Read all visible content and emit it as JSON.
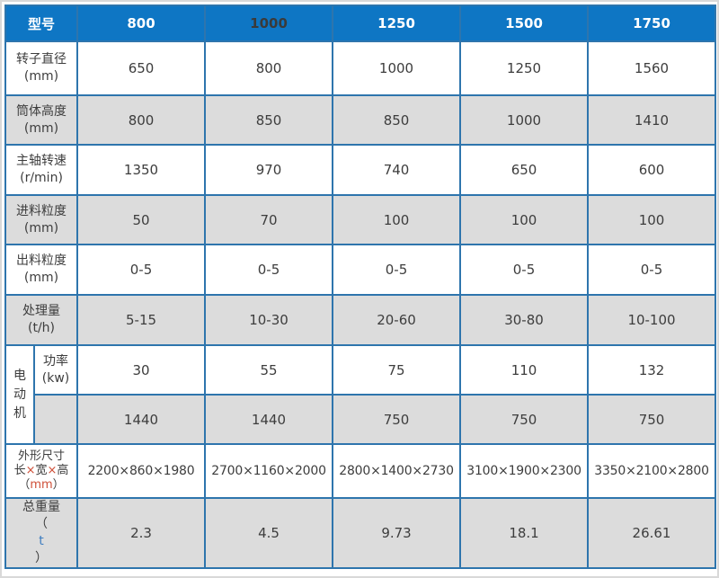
{
  "colors": {
    "header_bg": "#0e76c4",
    "grid_border": "#2e75ad",
    "alt_row_bg": "#dcdcdc",
    "body_text": "#3d3d3d",
    "header_text": "#ffffff",
    "header_dark_number": "#3a3a3a",
    "unit_red": "#cf4f38",
    "unit_blue": "#3f7ec0",
    "outer_frame": "#d9d9d9"
  },
  "table": {
    "header": {
      "label": "型号",
      "models": [
        "800",
        "1000",
        "1250",
        "1500",
        "1750"
      ]
    },
    "motor_label": "电动机",
    "rows": [
      {
        "label1": "转子直径",
        "label2": "(mm)",
        "values": [
          "650",
          "800",
          "1000",
          "1250",
          "1560"
        ]
      },
      {
        "label1": "筒体高度",
        "label2": "(mm)",
        "values": [
          "800",
          "850",
          "850",
          "1000",
          "1410"
        ]
      },
      {
        "label1": "主轴转速",
        "label2": "(r/min)",
        "values": [
          "1350",
          "970",
          "740",
          "650",
          "600"
        ]
      },
      {
        "label1": "进料粒度",
        "label2": "(mm)",
        "values": [
          "50",
          "70",
          "100",
          "100",
          "100"
        ]
      },
      {
        "label1": "出料粒度",
        "label2": "(mm)",
        "values": [
          "0-5",
          "0-5",
          "0-5",
          "0-5",
          "0-5"
        ]
      },
      {
        "label1": "处理量",
        "label2": "(t/h)",
        "values": [
          "5-15",
          "10-30",
          "20-60",
          "30-80",
          "10-100"
        ]
      },
      {
        "label1": "功率",
        "label2": "(kw)",
        "values": [
          "30",
          "55",
          "75",
          "110",
          "132"
        ]
      },
      {
        "label1": "",
        "label2": "",
        "values": [
          "1440",
          "1440",
          "750",
          "750",
          "750"
        ]
      },
      {
        "label1": "外形尺寸",
        "label2_parts": [
          "长",
          "×",
          "宽",
          "×",
          "高"
        ],
        "label3_parts": [
          "（",
          "mm",
          "）"
        ],
        "values": [
          "2200×860×1980",
          "2700×1160×2000",
          "2800×1400×2730",
          "3100×1900×2300",
          "3350×2100×2800"
        ]
      },
      {
        "label1": "总重量",
        "label3_parts": [
          "（",
          "t",
          "）"
        ],
        "values": [
          "2.3",
          "4.5",
          "9.73",
          "18.1",
          "26.61"
        ]
      }
    ]
  }
}
